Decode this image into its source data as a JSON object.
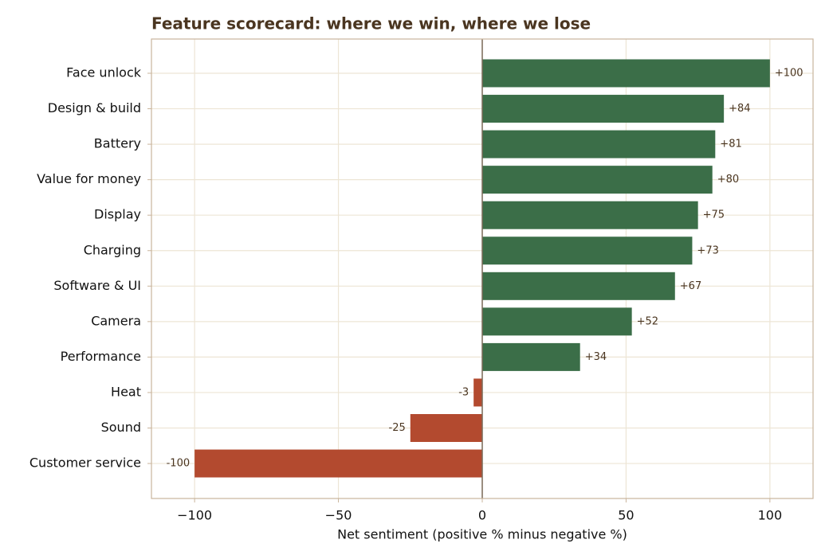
{
  "chart_data": {
    "type": "barh",
    "title": "Feature scorecard: where we win, where we lose",
    "xlabel": "Net sentiment  (positive % minus negative %)",
    "categories": [
      "Face unlock",
      "Design & build",
      "Battery",
      "Value for money",
      "Display",
      "Charging",
      "Software & UI",
      "Camera",
      "Performance",
      "Heat",
      "Sound",
      "Customer service"
    ],
    "values": [
      100,
      84,
      81,
      80,
      75,
      73,
      67,
      52,
      34,
      -3,
      -25,
      -100
    ],
    "value_labels": [
      "+100",
      "+84",
      "+81",
      "+80",
      "+75",
      "+73",
      "+67",
      "+52",
      "+34",
      "-3",
      "-25",
      "-100"
    ],
    "colors": [
      "#3b6e48",
      "#3b6e48",
      "#3b6e48",
      "#3b6e48",
      "#3b6e48",
      "#3b6e48",
      "#3b6e48",
      "#3b6e48",
      "#3b6e48",
      "#b34a2f",
      "#b34a2f",
      "#b34a2f"
    ],
    "xlim": [
      -115,
      115
    ],
    "xticks": [
      {
        "value": -100,
        "label": "−100"
      },
      {
        "value": -50,
        "label": "−50"
      },
      0,
      50,
      100
    ],
    "grid": true
  }
}
